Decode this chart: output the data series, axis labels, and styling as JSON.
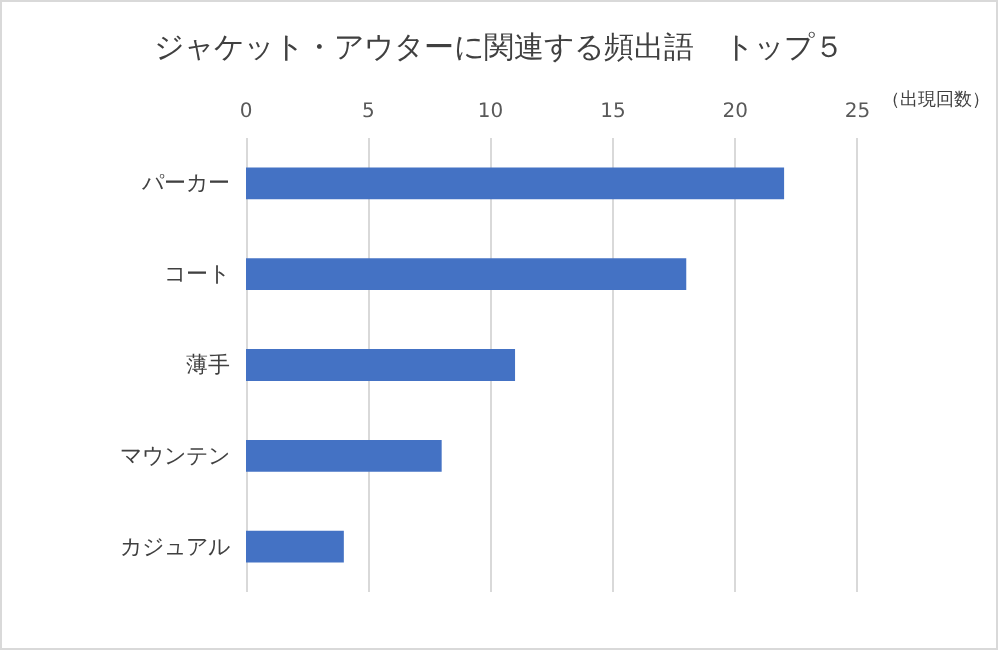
{
  "chart_data": {
    "type": "bar",
    "orientation": "horizontal",
    "title": "ジャケット・アウターに関連する頻出語　トップ５",
    "xlabel": "（出現回数）",
    "categories": [
      "パーカー",
      "コート",
      "薄手",
      "マウンテン",
      "カジュアル"
    ],
    "values": [
      22,
      18,
      11,
      8,
      4
    ],
    "color": "#4472c4",
    "xlim": [
      0,
      25
    ],
    "xticks": [
      0,
      5,
      10,
      15,
      20,
      25
    ],
    "grid": "x"
  }
}
